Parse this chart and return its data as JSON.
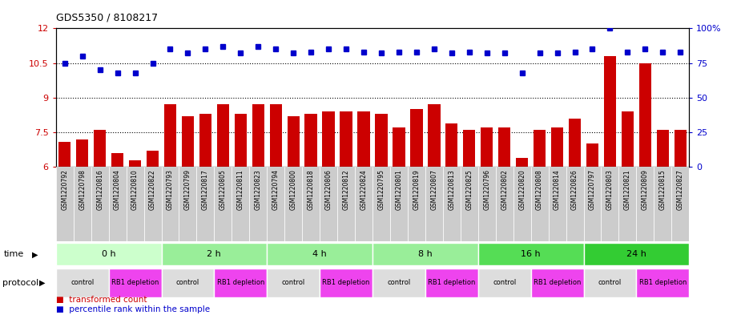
{
  "title": "GDS5350 / 8108217",
  "samples": [
    "GSM1220792",
    "GSM1220798",
    "GSM1220816",
    "GSM1220804",
    "GSM1220810",
    "GSM1220822",
    "GSM1220793",
    "GSM1220799",
    "GSM1220817",
    "GSM1220805",
    "GSM1220811",
    "GSM1220823",
    "GSM1220794",
    "GSM1220800",
    "GSM1220818",
    "GSM1220806",
    "GSM1220812",
    "GSM1220824",
    "GSM1220795",
    "GSM1220801",
    "GSM1220819",
    "GSM1220807",
    "GSM1220813",
    "GSM1220825",
    "GSM1220796",
    "GSM1220802",
    "GSM1220820",
    "GSM1220808",
    "GSM1220814",
    "GSM1220826",
    "GSM1220797",
    "GSM1220803",
    "GSM1220821",
    "GSM1220809",
    "GSM1220815",
    "GSM1220827"
  ],
  "bar_values": [
    7.1,
    7.2,
    7.6,
    6.6,
    6.3,
    6.7,
    8.7,
    8.2,
    8.3,
    8.7,
    8.3,
    8.7,
    8.7,
    8.2,
    8.3,
    8.4,
    8.4,
    8.4,
    8.3,
    7.7,
    8.5,
    8.7,
    7.9,
    7.6,
    7.7,
    7.7,
    6.4,
    7.6,
    7.7,
    8.1,
    7.0,
    10.8,
    8.4,
    10.5,
    7.6,
    7.6
  ],
  "dot_percentiles": [
    75,
    80,
    70,
    68,
    68,
    75,
    85,
    82,
    85,
    87,
    82,
    87,
    85,
    82,
    83,
    85,
    85,
    83,
    82,
    83,
    83,
    85,
    82,
    83,
    82,
    82,
    68,
    82,
    82,
    83,
    85,
    100,
    83,
    85,
    83,
    83
  ],
  "ylim_left": [
    6.0,
    12.0
  ],
  "ylim_right": [
    0,
    100
  ],
  "yticks_left": [
    6,
    7.5,
    9,
    10.5,
    12
  ],
  "yticks_right": [
    0,
    25,
    50,
    75,
    100
  ],
  "ytick_labels_left": [
    "6",
    "7.5",
    "9",
    "10.5",
    "12"
  ],
  "ytick_labels_right": [
    "0",
    "25",
    "50",
    "75",
    "100%"
  ],
  "bar_color": "#cc0000",
  "dot_color": "#0000cc",
  "hline_values": [
    7.5,
    9.0,
    10.5
  ],
  "time_groups": [
    {
      "label": "0 h",
      "start": 0,
      "end": 6,
      "color": "#ccffcc"
    },
    {
      "label": "2 h",
      "start": 6,
      "end": 12,
      "color": "#99ee99"
    },
    {
      "label": "4 h",
      "start": 12,
      "end": 18,
      "color": "#99ee99"
    },
    {
      "label": "8 h",
      "start": 18,
      "end": 24,
      "color": "#99ee99"
    },
    {
      "label": "16 h",
      "start": 24,
      "end": 30,
      "color": "#55dd55"
    },
    {
      "label": "24 h",
      "start": 30,
      "end": 36,
      "color": "#33cc33"
    }
  ],
  "protocol_groups": [
    {
      "label": "control",
      "start": 0,
      "end": 3,
      "color": "#dddddd"
    },
    {
      "label": "RB1 depletion",
      "start": 3,
      "end": 6,
      "color": "#ee44ee"
    },
    {
      "label": "control",
      "start": 6,
      "end": 9,
      "color": "#dddddd"
    },
    {
      "label": "RB1 depletion",
      "start": 9,
      "end": 12,
      "color": "#ee44ee"
    },
    {
      "label": "control",
      "start": 12,
      "end": 15,
      "color": "#dddddd"
    },
    {
      "label": "RB1 depletion",
      "start": 15,
      "end": 18,
      "color": "#ee44ee"
    },
    {
      "label": "control",
      "start": 18,
      "end": 21,
      "color": "#dddddd"
    },
    {
      "label": "RB1 depletion",
      "start": 21,
      "end": 24,
      "color": "#ee44ee"
    },
    {
      "label": "control",
      "start": 24,
      "end": 27,
      "color": "#dddddd"
    },
    {
      "label": "RB1 depletion",
      "start": 27,
      "end": 30,
      "color": "#ee44ee"
    },
    {
      "label": "control",
      "start": 30,
      "end": 33,
      "color": "#dddddd"
    },
    {
      "label": "RB1 depletion",
      "start": 33,
      "end": 36,
      "color": "#ee44ee"
    }
  ],
  "bg_color": "#ffffff",
  "tick_label_color_left": "#cc0000",
  "tick_label_color_right": "#0000cc",
  "sample_box_color": "#cccccc",
  "sample_box_border": "#ffffff"
}
